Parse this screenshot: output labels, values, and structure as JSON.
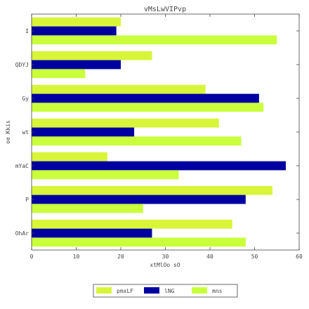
{
  "chart_data": {
    "type": "bar",
    "orientation": "horizontal",
    "title": "vMsLwVIPvp",
    "xlabel": "xtMlOo sO",
    "ylabel": "oe Kkis",
    "xlim": [
      0,
      60
    ],
    "xticks": [
      0,
      10,
      20,
      30,
      40,
      50,
      60
    ],
    "grid": false,
    "legend_position": "bottom-center",
    "categories": [
      "I",
      "QDYJ",
      "Gy",
      "wt",
      "mYaC",
      "P",
      "OhAr"
    ],
    "series": [
      {
        "name": "pmxLF",
        "color": "#d8f53a",
        "values": [
          20,
          27,
          39,
          42,
          17,
          54,
          45
        ]
      },
      {
        "name": "lNG",
        "color": "#0000a0",
        "values": [
          19,
          20,
          51,
          23,
          57,
          48,
          27
        ]
      },
      {
        "name": "mns",
        "color": "#c9ff3b",
        "values": [
          55,
          12,
          52,
          47,
          33,
          25,
          48
        ]
      }
    ]
  }
}
